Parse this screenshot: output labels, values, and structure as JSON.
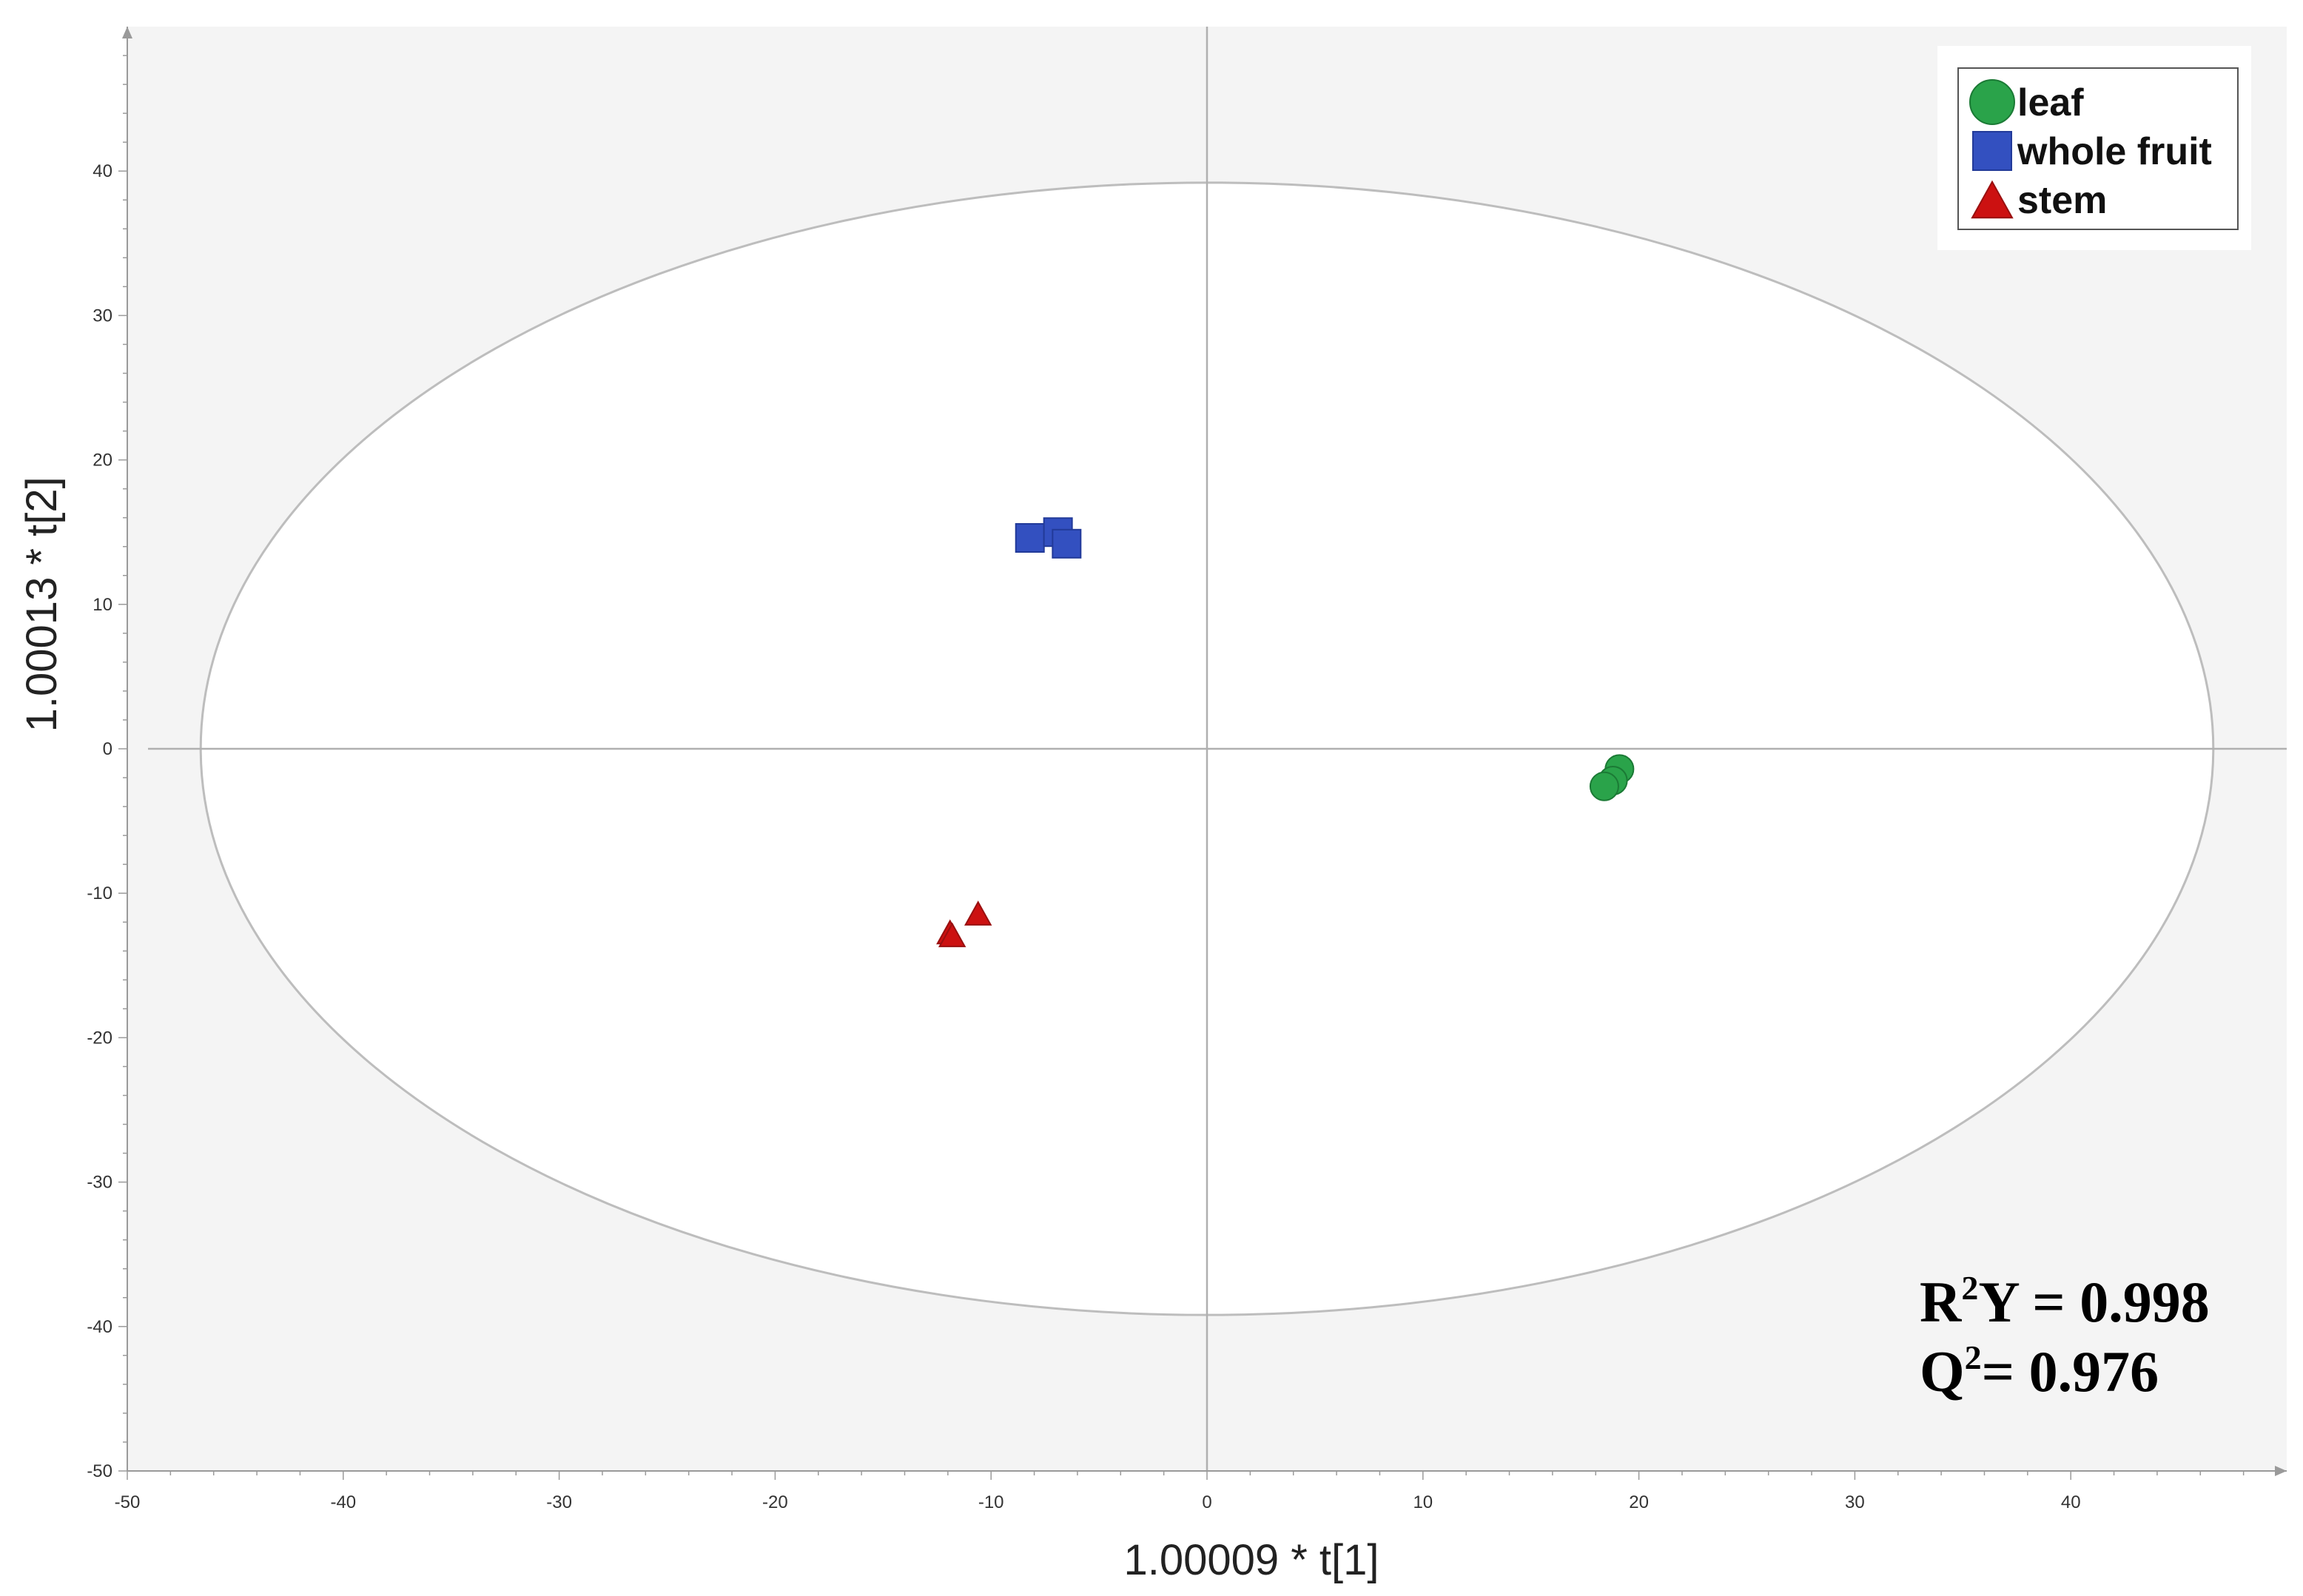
{
  "chart_data": {
    "type": "scatter",
    "xlabel": "1.00009 * t[1]",
    "ylabel": "1.00013 * t[2]",
    "xlim": [
      -50,
      50
    ],
    "ylim": [
      -50,
      50
    ],
    "x_ticks": [
      -50,
      -40,
      -30,
      -20,
      -10,
      0,
      10,
      20,
      30,
      40
    ],
    "y_ticks": [
      -50,
      -40,
      -30,
      -20,
      -10,
      0,
      10,
      20,
      30,
      40
    ],
    "grid": false,
    "legend_position": "top-right",
    "confidence_ellipse": {
      "x_radius": 46.6,
      "y_radius": 39.2
    },
    "series": [
      {
        "name": "leaf",
        "marker": "circle",
        "color": "#2aa34a",
        "points": [
          {
            "x": 19.1,
            "y": -1.4
          },
          {
            "x": 18.8,
            "y": -2.2
          },
          {
            "x": 18.4,
            "y": -2.6
          }
        ]
      },
      {
        "name": "whole fruit",
        "marker": "square",
        "color": "#3350c0",
        "points": [
          {
            "x": -8.2,
            "y": 14.6
          },
          {
            "x": -6.9,
            "y": 15.0
          },
          {
            "x": -6.5,
            "y": 14.2
          }
        ]
      },
      {
        "name": "stem",
        "marker": "triangle",
        "color": "#cc1111",
        "points": [
          {
            "x": -11.9,
            "y": -12.7
          },
          {
            "x": -11.8,
            "y": -12.9
          },
          {
            "x": -10.6,
            "y": -11.4
          }
        ]
      }
    ],
    "annotations": {
      "r2y_prefix": "R",
      "r2y_sup": "2",
      "r2y_rest": "Y = 0.998",
      "q2_prefix": "Q",
      "q2_sup": "2",
      "q2_rest": "= 0.976"
    }
  }
}
